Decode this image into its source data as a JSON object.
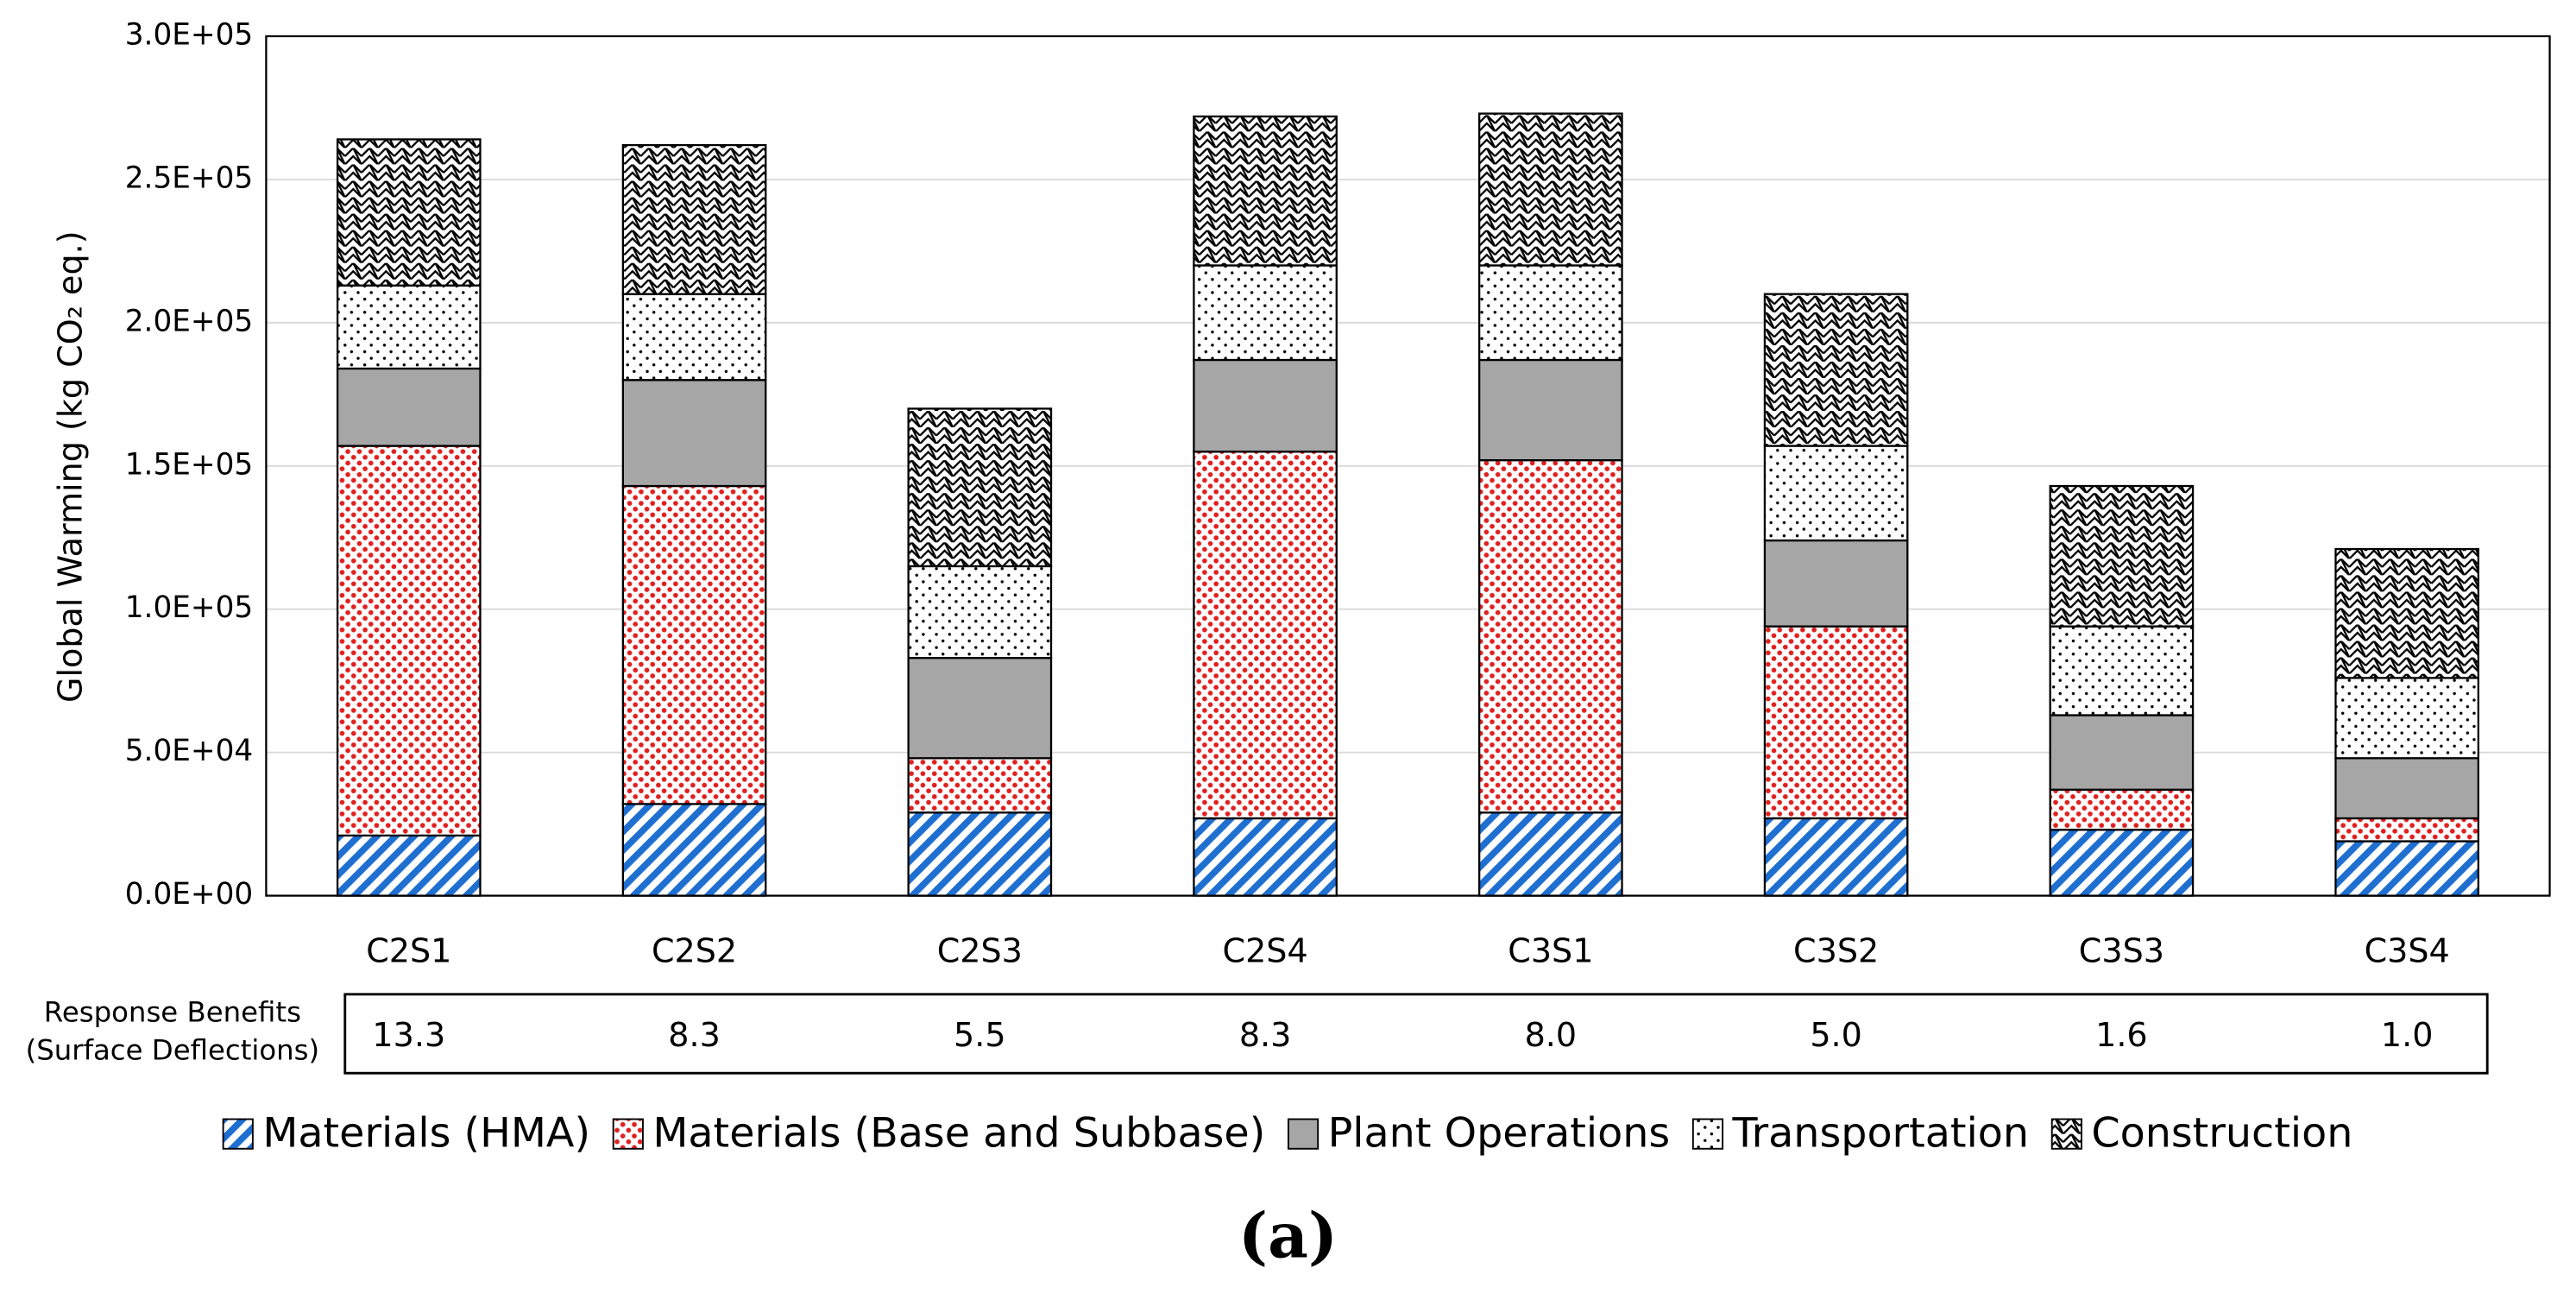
{
  "chart_data": {
    "type": "stacked-bar",
    "y_label": "Global Warming (kg CO₂ eq.)",
    "categories": [
      "C2S1",
      "C2S2",
      "C2S3",
      "C2S4",
      "C3S1",
      "C3S2",
      "C3S3",
      "C3S4"
    ],
    "series": [
      {
        "name": "Materials (HMA)",
        "color": "#1f6fd1",
        "pattern": "diagonal",
        "values": [
          21000,
          32000,
          29000,
          27000,
          29000,
          27000,
          23000,
          19000
        ]
      },
      {
        "name": "Materials (Base and Subbase)",
        "color": "#e02020",
        "pattern": "dots",
        "values": [
          136000,
          111000,
          19000,
          128000,
          123000,
          67000,
          14000,
          8000
        ]
      },
      {
        "name": "Plant Operations",
        "color": "#a6a6a6",
        "pattern": "solid",
        "values": [
          27000,
          37000,
          35000,
          32000,
          35000,
          30000,
          26000,
          21000
        ]
      },
      {
        "name": "Transportation",
        "color": "#000000",
        "pattern": "sparse-dots",
        "values": [
          29000,
          30000,
          32000,
          33000,
          33000,
          33000,
          31000,
          28000
        ]
      },
      {
        "name": "Construction",
        "color": "#000000",
        "pattern": "crosshatch",
        "values": [
          51000,
          52000,
          55000,
          52000,
          53000,
          53000,
          49000,
          45000
        ]
      }
    ],
    "ylim": [
      0,
      300000
    ],
    "yticks": [
      {
        "value": 0,
        "label": "0.0E+00"
      },
      {
        "value": 50000,
        "label": "5.0E+04"
      },
      {
        "value": 100000,
        "label": "1.0E+05"
      },
      {
        "value": 150000,
        "label": "1.5E+05"
      },
      {
        "value": 200000,
        "label": "2.0E+05"
      },
      {
        "value": 250000,
        "label": "2.5E+05"
      },
      {
        "value": 300000,
        "label": "3.0E+05"
      }
    ],
    "grid": true,
    "legend": "bottom",
    "response_benefits": {
      "label": [
        "Response Benefits",
        "(Surface Deflections)"
      ],
      "values": [
        "13.3",
        "8.3",
        "5.5",
        "8.3",
        "8.0",
        "5.0",
        "1.6",
        "1.0"
      ]
    },
    "caption": "(a)"
  }
}
